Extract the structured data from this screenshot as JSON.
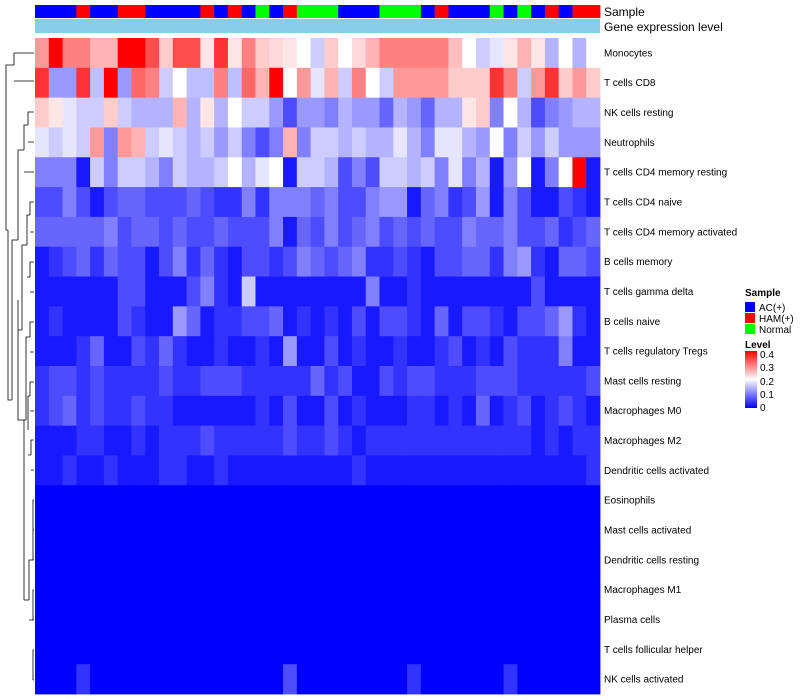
{
  "chart_data": {
    "type": "heatmap",
    "title": "",
    "value_range": [
      0,
      0.4
    ],
    "color_scale": {
      "low": "#0000ff",
      "mid": "#ffffff",
      "high": "#ff0000"
    },
    "annotations": [
      {
        "name": "Sample",
        "type": "categorical",
        "values": [
          "AC(+)",
          "AC(+)",
          "AC(+)",
          "HAM(+)",
          "AC(+)",
          "AC(+)",
          "HAM(+)",
          "HAM(+)",
          "AC(+)",
          "AC(+)",
          "AC(+)",
          "AC(+)",
          "HAM(+)",
          "AC(+)",
          "HAM(+)",
          "AC(+)",
          "Normal",
          "AC(+)",
          "HAM(+)",
          "Normal",
          "Normal",
          "Normal",
          "AC(+)",
          "AC(+)",
          "AC(+)",
          "Normal",
          "Normal",
          "Normal",
          "AC(+)",
          "HAM(+)",
          "AC(+)",
          "AC(+)",
          "AC(+)",
          "Normal",
          "AC(+)",
          "Normal",
          "AC(+)",
          "HAM(+)",
          "AC(+)",
          "HAM(+)",
          "HAM(+)"
        ]
      },
      {
        "name": "Gene expression level",
        "type": "constant",
        "color": "#87ceeb"
      }
    ],
    "rows": [
      "Monocytes",
      "T cells CD8",
      "NK cells resting",
      "Neutrophils",
      "T cells CD4 memory resting",
      "T cells CD4 naive",
      "T cells CD4 memory activated",
      "B cells memory",
      "T cells gamma delta",
      "B cells naive",
      "T cells regulatory  Tregs",
      "Mast cells resting",
      "Macrophages M0",
      "Macrophages M2",
      "Dendritic cells activated",
      "Eosinophils",
      "Mast cells activated",
      "Dendritic cells resting",
      "Macrophages M1",
      "Plasma cells",
      "T cells follicular helper",
      "NK cells activated"
    ],
    "values": [
      [
        0.28,
        0.4,
        0.3,
        0.3,
        0.26,
        0.26,
        0.4,
        0.4,
        0.34,
        0.24,
        0.34,
        0.34,
        0.22,
        0.36,
        0.22,
        0.3,
        0.24,
        0.23,
        0.22,
        0.2,
        0.16,
        0.24,
        0.2,
        0.23,
        0.26,
        0.3,
        0.3,
        0.3,
        0.3,
        0.3,
        0.25,
        0.2,
        0.16,
        0.18,
        0.22,
        0.26,
        0.22,
        0.14,
        0.2,
        0.14,
        0.2
      ],
      [
        0.36,
        0.12,
        0.12,
        0.36,
        0.15,
        0.4,
        0.12,
        0.32,
        0.3,
        0.16,
        0.2,
        0.15,
        0.15,
        0.3,
        0.15,
        0.32,
        0.26,
        0.4,
        0.2,
        0.28,
        0.18,
        0.26,
        0.16,
        0.3,
        0.2,
        0.16,
        0.28,
        0.28,
        0.28,
        0.28,
        0.24,
        0.24,
        0.24,
        0.36,
        0.3,
        0.16,
        0.28,
        0.36,
        0.24,
        0.28,
        0.24
      ],
      [
        0.24,
        0.22,
        0.18,
        0.16,
        0.16,
        0.24,
        0.16,
        0.14,
        0.14,
        0.14,
        0.26,
        0.14,
        0.22,
        0.14,
        0.2,
        0.16,
        0.16,
        0.12,
        0.06,
        0.12,
        0.12,
        0.1,
        0.14,
        0.12,
        0.12,
        0.08,
        0.14,
        0.12,
        0.08,
        0.14,
        0.14,
        0.22,
        0.24,
        0.1,
        0.2,
        0.14,
        0.06,
        0.1,
        0.12,
        0.14,
        0.14
      ],
      [
        0.18,
        0.16,
        0.18,
        0.16,
        0.28,
        0.1,
        0.28,
        0.26,
        0.16,
        0.18,
        0.16,
        0.14,
        0.16,
        0.12,
        0.16,
        0.1,
        0.06,
        0.1,
        0.26,
        0.1,
        0.16,
        0.16,
        0.14,
        0.16,
        0.14,
        0.14,
        0.18,
        0.14,
        0.1,
        0.18,
        0.18,
        0.14,
        0.12,
        0.2,
        0.1,
        0.16,
        0.12,
        0.16,
        0.12,
        0.12,
        0.12
      ],
      [
        0.1,
        0.1,
        0.1,
        0.02,
        0.16,
        0.1,
        0.16,
        0.16,
        0.14,
        0.1,
        0.16,
        0.14,
        0.14,
        0.16,
        0.2,
        0.14,
        0.18,
        0.2,
        0.02,
        0.16,
        0.16,
        0.14,
        0.06,
        0.1,
        0.06,
        0.16,
        0.16,
        0.14,
        0.16,
        0.1,
        0.18,
        0.1,
        0.14,
        0.02,
        0.12,
        0.2,
        0.02,
        0.1,
        0.2,
        0.4,
        0.02
      ],
      [
        0.06,
        0.06,
        0.1,
        0.06,
        0.02,
        0.06,
        0.08,
        0.08,
        0.06,
        0.06,
        0.06,
        0.08,
        0.06,
        0.04,
        0.04,
        0.1,
        0.04,
        0.1,
        0.1,
        0.1,
        0.08,
        0.1,
        0.06,
        0.06,
        0.1,
        0.12,
        0.12,
        0.02,
        0.08,
        0.1,
        0.04,
        0.06,
        0.12,
        0.02,
        0.1,
        0.06,
        0.02,
        0.02,
        0.06,
        0.04,
        0.02
      ],
      [
        0.08,
        0.08,
        0.08,
        0.08,
        0.08,
        0.1,
        0.06,
        0.08,
        0.08,
        0.06,
        0.08,
        0.06,
        0.06,
        0.08,
        0.06,
        0.06,
        0.06,
        0.1,
        0.02,
        0.08,
        0.06,
        0.1,
        0.06,
        0.08,
        0.1,
        0.06,
        0.08,
        0.06,
        0.08,
        0.06,
        0.06,
        0.1,
        0.08,
        0.08,
        0.1,
        0.06,
        0.06,
        0.08,
        0.04,
        0.06,
        0.08
      ],
      [
        0.02,
        0.04,
        0.06,
        0.08,
        0.04,
        0.08,
        0.06,
        0.06,
        0.02,
        0.06,
        0.1,
        0.04,
        0.08,
        0.04,
        0.02,
        0.06,
        0.06,
        0.04,
        0.06,
        0.1,
        0.08,
        0.06,
        0.08,
        0.1,
        0.04,
        0.04,
        0.06,
        0.04,
        0.02,
        0.06,
        0.06,
        0.08,
        0.08,
        0.04,
        0.1,
        0.12,
        0.04,
        0.02,
        0.08,
        0.08,
        0.06
      ],
      [
        0.02,
        0.02,
        0.02,
        0.02,
        0.02,
        0.02,
        0.06,
        0.06,
        0.02,
        0.02,
        0.02,
        0.06,
        0.1,
        0.04,
        0.02,
        0.16,
        0.02,
        0.02,
        0.02,
        0.02,
        0.02,
        0.02,
        0.02,
        0.02,
        0.1,
        0.02,
        0.02,
        0.04,
        0.02,
        0.02,
        0.02,
        0.02,
        0.02,
        0.02,
        0.02,
        0.02,
        0.06,
        0.02,
        0.02,
        0.02,
        0.02
      ],
      [
        0.02,
        0.04,
        0.02,
        0.02,
        0.02,
        0.02,
        0.06,
        0.04,
        0.02,
        0.02,
        0.12,
        0.08,
        0.02,
        0.04,
        0.04,
        0.06,
        0.06,
        0.08,
        0.02,
        0.04,
        0.02,
        0.04,
        0.02,
        0.06,
        0.02,
        0.06,
        0.06,
        0.04,
        0.02,
        0.08,
        0.02,
        0.06,
        0.06,
        0.04,
        0.02,
        0.06,
        0.06,
        0.08,
        0.12,
        0.04,
        0.02
      ],
      [
        0.02,
        0.02,
        0.02,
        0.04,
        0.08,
        0.02,
        0.02,
        0.06,
        0.04,
        0.08,
        0.04,
        0.02,
        0.02,
        0.04,
        0.02,
        0.02,
        0.04,
        0.02,
        0.12,
        0.02,
        0.02,
        0.06,
        0.02,
        0.04,
        0.02,
        0.02,
        0.04,
        0.02,
        0.02,
        0.04,
        0.06,
        0.02,
        0.04,
        0.02,
        0.06,
        0.04,
        0.04,
        0.04,
        0.1,
        0.02,
        0.02
      ],
      [
        0.04,
        0.06,
        0.06,
        0.04,
        0.06,
        0.04,
        0.04,
        0.04,
        0.04,
        0.06,
        0.04,
        0.04,
        0.06,
        0.06,
        0.06,
        0.04,
        0.04,
        0.04,
        0.04,
        0.04,
        0.08,
        0.04,
        0.06,
        0.02,
        0.02,
        0.06,
        0.04,
        0.06,
        0.06,
        0.04,
        0.04,
        0.04,
        0.06,
        0.06,
        0.06,
        0.04,
        0.04,
        0.04,
        0.04,
        0.04,
        0.06
      ],
      [
        0.04,
        0.06,
        0.08,
        0.04,
        0.06,
        0.04,
        0.04,
        0.06,
        0.04,
        0.04,
        0.02,
        0.02,
        0.02,
        0.02,
        0.02,
        0.02,
        0.04,
        0.02,
        0.06,
        0.02,
        0.02,
        0.06,
        0.02,
        0.04,
        0.02,
        0.02,
        0.02,
        0.04,
        0.04,
        0.02,
        0.04,
        0.02,
        0.08,
        0.02,
        0.04,
        0.06,
        0.02,
        0.04,
        0.06,
        0.04,
        0.02
      ],
      [
        0.02,
        0.02,
        0.02,
        0.04,
        0.04,
        0.02,
        0.02,
        0.04,
        0.02,
        0.04,
        0.04,
        0.04,
        0.06,
        0.04,
        0.04,
        0.04,
        0.04,
        0.04,
        0.06,
        0.04,
        0.04,
        0.06,
        0.04,
        0.02,
        0.04,
        0.04,
        0.04,
        0.04,
        0.04,
        0.04,
        0.04,
        0.04,
        0.04,
        0.04,
        0.04,
        0.04,
        0.02,
        0.04,
        0.02,
        0.04,
        0.04
      ],
      [
        0.02,
        0.02,
        0.04,
        0.02,
        0.02,
        0.04,
        0.02,
        0.02,
        0.02,
        0.04,
        0.04,
        0.02,
        0.02,
        0.04,
        0.02,
        0.02,
        0.02,
        0.02,
        0.02,
        0.02,
        0.02,
        0.02,
        0.02,
        0.04,
        0.02,
        0.02,
        0.02,
        0.02,
        0.02,
        0.02,
        0.02,
        0.02,
        0.02,
        0.02,
        0.02,
        0.02,
        0.02,
        0.02,
        0.02,
        0.02,
        0.04
      ],
      [
        0,
        0,
        0,
        0,
        0,
        0,
        0,
        0,
        0,
        0,
        0,
        0,
        0,
        0,
        0,
        0,
        0,
        0,
        0,
        0,
        0,
        0,
        0,
        0,
        0,
        0,
        0,
        0,
        0,
        0,
        0,
        0,
        0,
        0,
        0,
        0,
        0,
        0,
        0,
        0,
        0
      ],
      [
        0,
        0,
        0,
        0,
        0,
        0,
        0,
        0,
        0,
        0,
        0,
        0,
        0,
        0,
        0,
        0,
        0,
        0,
        0,
        0,
        0,
        0,
        0,
        0,
        0,
        0,
        0,
        0,
        0,
        0,
        0,
        0,
        0,
        0,
        0,
        0,
        0,
        0,
        0,
        0,
        0
      ],
      [
        0,
        0,
        0,
        0,
        0,
        0,
        0,
        0,
        0,
        0,
        0,
        0,
        0,
        0,
        0,
        0,
        0,
        0,
        0,
        0,
        0,
        0,
        0,
        0,
        0,
        0,
        0,
        0,
        0,
        0,
        0,
        0,
        0,
        0,
        0,
        0,
        0,
        0,
        0,
        0,
        0
      ],
      [
        0,
        0,
        0,
        0,
        0,
        0,
        0,
        0,
        0,
        0,
        0,
        0,
        0,
        0,
        0,
        0,
        0,
        0,
        0,
        0,
        0,
        0,
        0,
        0,
        0,
        0,
        0,
        0,
        0,
        0,
        0,
        0,
        0,
        0,
        0,
        0,
        0,
        0,
        0,
        0,
        0
      ],
      [
        0,
        0,
        0,
        0,
        0,
        0,
        0,
        0,
        0,
        0,
        0,
        0,
        0,
        0,
        0,
        0,
        0,
        0,
        0,
        0,
        0,
        0,
        0,
        0,
        0,
        0,
        0,
        0,
        0,
        0,
        0,
        0,
        0,
        0,
        0,
        0,
        0,
        0,
        0,
        0,
        0
      ],
      [
        0,
        0,
        0,
        0,
        0,
        0,
        0,
        0,
        0,
        0,
        0,
        0,
        0,
        0,
        0,
        0,
        0,
        0,
        0,
        0,
        0,
        0,
        0,
        0,
        0,
        0,
        0,
        0,
        0,
        0,
        0,
        0,
        0,
        0,
        0,
        0,
        0,
        0,
        0,
        0,
        0
      ],
      [
        0,
        0,
        0,
        0.04,
        0,
        0,
        0,
        0,
        0,
        0,
        0,
        0,
        0,
        0,
        0,
        0,
        0,
        0,
        0.06,
        0,
        0,
        0,
        0,
        0,
        0,
        0,
        0,
        0.04,
        0,
        0,
        0,
        0,
        0,
        0,
        0.04,
        0,
        0,
        0,
        0,
        0,
        0
      ]
    ],
    "legend": {
      "sample": {
        "title": "Sample",
        "entries": [
          {
            "label": "AC(+)",
            "color": "#0000ff"
          },
          {
            "label": "HAM(+)",
            "color": "#ff0000"
          },
          {
            "label": "Normal",
            "color": "#00ff00"
          }
        ]
      },
      "level": {
        "title": "Level",
        "ticks": [
          "0.4",
          "0.3",
          "0.2",
          "0.1",
          "0"
        ]
      }
    }
  }
}
